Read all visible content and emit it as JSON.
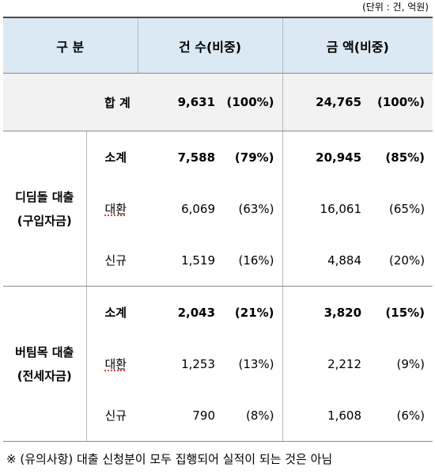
{
  "unit_label": "(단위 : 건, 억원)",
  "header": {
    "category": "구 분",
    "count": "건 수(비중)",
    "amount": "금 액(비중)"
  },
  "total": {
    "label": "합 계",
    "count": "9,631",
    "count_pct": "(100%)",
    "amount": "24,765",
    "amount_pct": "(100%)"
  },
  "groups": [
    {
      "name_line1": "디딤돌 대출",
      "name_line2": "(구입자금)",
      "rows": [
        {
          "label": "소계",
          "count": "7,588",
          "count_pct": "(79%)",
          "amount": "20,945",
          "amount_pct": "(85%)"
        },
        {
          "label": "대환",
          "count": "6,069",
          "count_pct": "(63%)",
          "amount": "16,061",
          "amount_pct": "(65%)"
        },
        {
          "label": "신규",
          "count": "1,519",
          "count_pct": "(16%)",
          "amount": "4,884",
          "amount_pct": "(20%)"
        }
      ]
    },
    {
      "name_line1": "버팀목 대출",
      "name_line2": "(전세자금)",
      "rows": [
        {
          "label": "소계",
          "count": "2,043",
          "count_pct": "(21%)",
          "amount": "3,820",
          "amount_pct": "(15%)"
        },
        {
          "label": "대환",
          "count": "1,253",
          "count_pct": "(13%)",
          "amount": "2,212",
          "amount_pct": "(9%)"
        },
        {
          "label": "신규",
          "count": "790",
          "count_pct": "(8%)",
          "amount": "1,608",
          "amount_pct": "(6%)"
        }
      ]
    }
  ],
  "note": "※ (유의사항) 대출 신청분이 모두 집행되어 실적이 되는 것은 아님"
}
